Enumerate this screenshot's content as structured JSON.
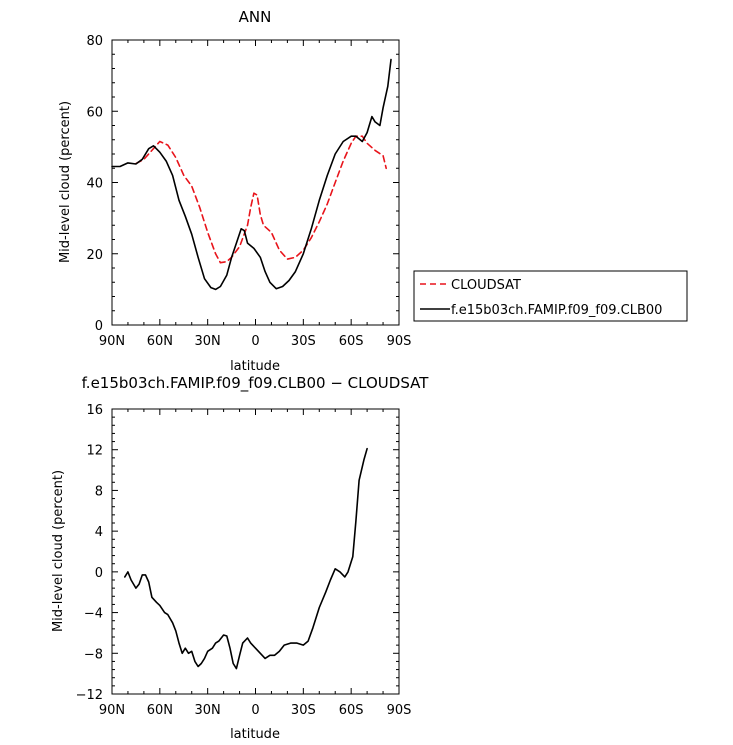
{
  "chart_data": [
    {
      "type": "line",
      "title": "ANN",
      "xlabel": "latitude",
      "ylabel": "Mid-level cloud (percent)",
      "xlim": [
        90,
        -90
      ],
      "ylim": [
        0,
        80
      ],
      "xticks": [
        90,
        60,
        30,
        0,
        -30,
        -60,
        -90
      ],
      "xtick_labels": [
        "90N",
        "60N",
        "30N",
        "0",
        "30S",
        "60S",
        "90S"
      ],
      "yticks": [
        0,
        20,
        40,
        60,
        80
      ],
      "ytick_labels": [
        "0",
        "20",
        "40",
        "60",
        "80"
      ],
      "legend_position": "outside-right",
      "series": [
        {
          "name": "CLOUDSAT",
          "color": "#e8141b",
          "dash": "dashed",
          "points": [
            [
              75,
              45.3
            ],
            [
              70,
              46.5
            ],
            [
              65,
              49
            ],
            [
              60,
              51.5
            ],
            [
              55,
              50.5
            ],
            [
              50,
              47
            ],
            [
              45,
              42
            ],
            [
              40,
              39
            ],
            [
              35,
              33
            ],
            [
              30,
              26
            ],
            [
              25,
              20
            ],
            [
              22,
              17.5
            ],
            [
              18,
              17.8
            ],
            [
              15,
              19
            ],
            [
              10,
              22
            ],
            [
              5,
              28
            ],
            [
              3,
              33
            ],
            [
              1,
              37
            ],
            [
              -1,
              36.5
            ],
            [
              -3,
              31
            ],
            [
              -5,
              28
            ],
            [
              -10,
              26
            ],
            [
              -15,
              21
            ],
            [
              -20,
              18.5
            ],
            [
              -25,
              19
            ],
            [
              -30,
              21
            ],
            [
              -35,
              24.5
            ],
            [
              -40,
              29
            ],
            [
              -45,
              34
            ],
            [
              -50,
              40
            ],
            [
              -55,
              46
            ],
            [
              -60,
              51
            ],
            [
              -63,
              53
            ],
            [
              -67,
              53
            ],
            [
              -70,
              51
            ],
            [
              -75,
              49
            ],
            [
              -80,
              47.5
            ],
            [
              -82,
              44
            ]
          ]
        },
        {
          "name": "f.e15b03ch.FAMIP.f09_f09.CLB00",
          "color": "#000000",
          "dash": "solid",
          "points": [
            [
              90,
              44.5
            ],
            [
              85,
              44.5
            ],
            [
              80,
              45.5
            ],
            [
              75,
              45.2
            ],
            [
              71,
              46.5
            ],
            [
              67,
              49.5
            ],
            [
              64,
              50.3
            ],
            [
              60,
              48.5
            ],
            [
              56,
              46
            ],
            [
              52,
              42
            ],
            [
              48,
              35
            ],
            [
              44,
              30.5
            ],
            [
              40,
              25.5
            ],
            [
              36,
              19
            ],
            [
              32,
              13
            ],
            [
              28,
              10.5
            ],
            [
              25,
              10
            ],
            [
              22,
              10.8
            ],
            [
              18,
              14
            ],
            [
              15,
              19
            ],
            [
              12,
              23
            ],
            [
              9,
              27
            ],
            [
              7,
              26.5
            ],
            [
              5,
              23
            ],
            [
              1,
              21.5
            ],
            [
              -3,
              19
            ],
            [
              -6,
              15
            ],
            [
              -9,
              12
            ],
            [
              -13,
              10.2
            ],
            [
              -17,
              10.8
            ],
            [
              -21,
              12.5
            ],
            [
              -25,
              15
            ],
            [
              -30,
              20
            ],
            [
              -35,
              27
            ],
            [
              -40,
              35
            ],
            [
              -45,
              42
            ],
            [
              -50,
              48
            ],
            [
              -55,
              51.5
            ],
            [
              -60,
              53
            ],
            [
              -63,
              53
            ],
            [
              -67,
              51.5
            ],
            [
              -70,
              54
            ],
            [
              -73,
              58.5
            ],
            [
              -75,
              57
            ],
            [
              -78,
              56
            ],
            [
              -80,
              61
            ],
            [
              -83,
              67
            ],
            [
              -85,
              74.5
            ]
          ]
        }
      ]
    },
    {
      "type": "line",
      "title": "f.e15b03ch.FAMIP.f09_f09.CLB00 − CLOUDSAT",
      "xlabel": "latitude",
      "ylabel": "Mid-level cloud (percent)",
      "xlim": [
        90,
        -90
      ],
      "ylim": [
        -12,
        16
      ],
      "xticks": [
        90,
        60,
        30,
        0,
        -30,
        -60,
        -90
      ],
      "xtick_labels": [
        "90N",
        "60N",
        "30N",
        "0",
        "30S",
        "60S",
        "90S"
      ],
      "yticks": [
        -12,
        -8,
        -4,
        0,
        4,
        8,
        12,
        16
      ],
      "ytick_labels": [
        "−12",
        "−8",
        "−4",
        "0",
        "4",
        "8",
        "12",
        "16"
      ],
      "series": [
        {
          "color": "#000000",
          "dash": "solid",
          "points": [
            [
              82,
              -0.5
            ],
            [
              80,
              0
            ],
            [
              78,
              -0.8
            ],
            [
              75,
              -1.6
            ],
            [
              73,
              -1.2
            ],
            [
              71,
              -0.3
            ],
            [
              69,
              -0.3
            ],
            [
              67,
              -1
            ],
            [
              65,
              -2.5
            ],
            [
              62,
              -3
            ],
            [
              60,
              -3.3
            ],
            [
              57,
              -4
            ],
            [
              55,
              -4.2
            ],
            [
              52,
              -5
            ],
            [
              50,
              -5.8
            ],
            [
              48,
              -7
            ],
            [
              46,
              -8
            ],
            [
              44,
              -7.5
            ],
            [
              42,
              -8
            ],
            [
              40,
              -7.8
            ],
            [
              38,
              -8.8
            ],
            [
              36,
              -9.3
            ],
            [
              34,
              -9
            ],
            [
              32,
              -8.5
            ],
            [
              30,
              -7.8
            ],
            [
              27,
              -7.5
            ],
            [
              25,
              -7
            ],
            [
              23,
              -6.8
            ],
            [
              20,
              -6.2
            ],
            [
              18,
              -6.3
            ],
            [
              16,
              -7.5
            ],
            [
              14,
              -9
            ],
            [
              12,
              -9.5
            ],
            [
              10,
              -8.2
            ],
            [
              8,
              -7
            ],
            [
              5,
              -6.5
            ],
            [
              3,
              -7
            ],
            [
              0,
              -7.5
            ],
            [
              -3,
              -8
            ],
            [
              -6,
              -8.5
            ],
            [
              -9,
              -8.2
            ],
            [
              -12,
              -8.2
            ],
            [
              -15,
              -7.8
            ],
            [
              -18,
              -7.2
            ],
            [
              -22,
              -7
            ],
            [
              -26,
              -7
            ],
            [
              -30,
              -7.2
            ],
            [
              -33,
              -6.8
            ],
            [
              -36,
              -5.5
            ],
            [
              -40,
              -3.5
            ],
            [
              -44,
              -2
            ],
            [
              -47,
              -0.8
            ],
            [
              -50,
              0.3
            ],
            [
              -53,
              0
            ],
            [
              -56,
              -0.5
            ],
            [
              -58,
              0
            ],
            [
              -61,
              1.5
            ],
            [
              -63,
              5
            ],
            [
              -65,
              9
            ],
            [
              -68,
              11
            ],
            [
              -70,
              12.1
            ]
          ]
        }
      ]
    }
  ]
}
